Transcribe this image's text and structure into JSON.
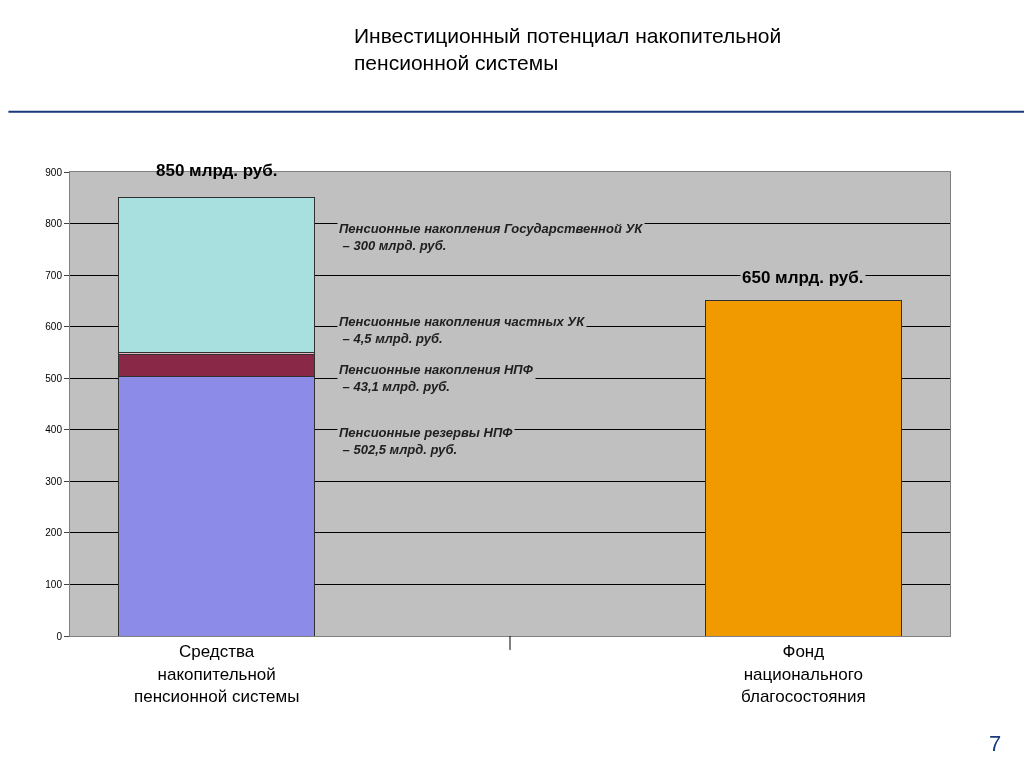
{
  "chart_data": {
    "type": "bar",
    "title": "Инвестиционный потенциал накопительной\nпенсионной системы",
    "categories": [
      "Средства\nнакопительной\nпенсионной системы",
      "Фонд\nнационального\nблагосостояния"
    ],
    "stacked": true,
    "series": [
      {
        "color": "#8c8ce8",
        "values": [
          502.5,
          null
        ]
      },
      {
        "color": "#8a2848",
        "values": [
          43.1,
          null
        ]
      },
      {
        "color": "#e8b8c8",
        "values": [
          4.5,
          null
        ]
      },
      {
        "color": "#a8e0e0",
        "values": [
          300,
          null
        ]
      },
      {
        "color": "#f09a00",
        "values": [
          null,
          650
        ]
      }
    ],
    "totals": [
      "850 млрд. руб.",
      "650 млрд. руб."
    ],
    "ylim": [
      0,
      900
    ],
    "yticks": [
      0,
      100,
      200,
      300,
      400,
      500,
      600,
      700,
      800,
      900
    ],
    "grid": "y",
    "annotations": [
      "Пенсионные резервы НПФ\n – 502,5 млрд. руб.",
      "Пенсионные накопления НПФ\n – 43,1 млрд. руб.",
      "Пенсионные накопления частных УК\n – 4,5 млрд. руб.",
      "Пенсионные накопления Государственной УК\n – 300 млрд. руб.",
      "7"
    ]
  }
}
